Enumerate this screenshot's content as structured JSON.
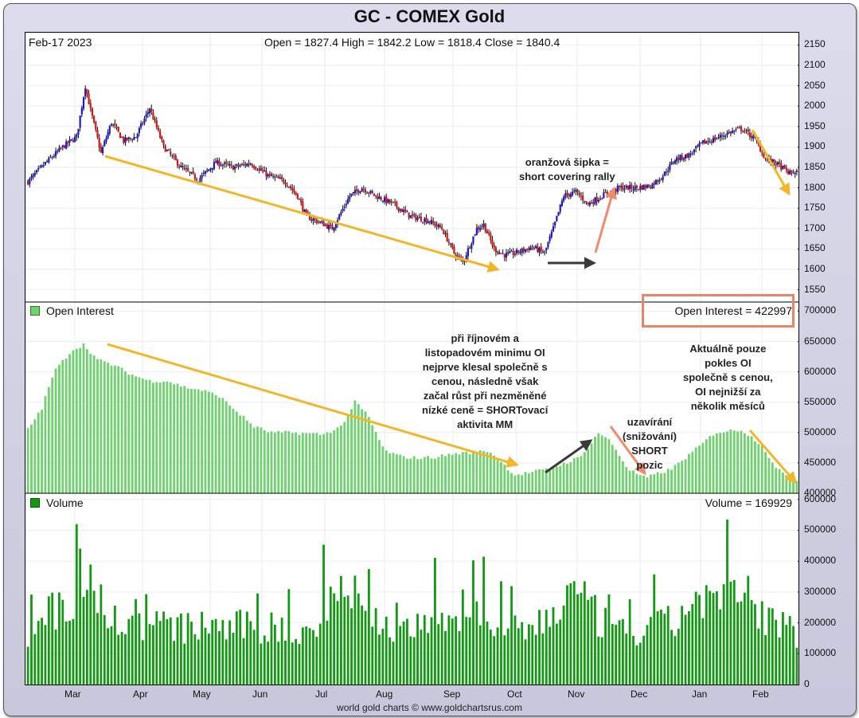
{
  "title": "GC - COMEX Gold",
  "header": {
    "date": "Feb-17  2023",
    "ohlc": "Open = 1827.4   High = 1842.2   Low = 1818.4   Close = 1840.4"
  },
  "oi_panel": {
    "label": "Open Interest",
    "value_text": "Open Interest = 422997"
  },
  "volume_panel": {
    "label": "Volume",
    "value_text": "Volume = 169929"
  },
  "footer": "world gold charts © www.goldchartsrus.com",
  "annotations": {
    "orange_arrow": [
      "oranžová šipka =",
      "short covering rally"
    ],
    "oct_nov": [
      "při říjnovém a",
      "listopadovém minimu OI",
      "nejprve klesal společně s",
      "cenou, následně však",
      "začal růst při nezměněné",
      "nízké ceně = SHORTovací",
      "aktivita MM"
    ],
    "closing": [
      "uzavírání",
      "(snižování)",
      "SHORT",
      "pozic"
    ],
    "current": [
      "Aktuálně pouze",
      "pokles OI",
      "společně s cenou,",
      "OI nejnižší za",
      "několik měsíců"
    ]
  },
  "colors": {
    "up": "#1a1acc",
    "down": "#dd1111",
    "oi": "#6fd16f",
    "volume": "#119911",
    "trend": "#f2b62a",
    "orange": "#ef8a6a",
    "dark": "#3a3a3a"
  },
  "chart_data": [
    {
      "type": "candlestick",
      "title": "GC - COMEX Gold",
      "ylim": [
        1520,
        2180
      ],
      "y_ticks": [
        1550,
        1600,
        1650,
        1700,
        1750,
        1800,
        1850,
        1900,
        1950,
        2000,
        2050,
        2100,
        2150
      ],
      "x_ticks": [
        "Mar",
        "Apr",
        "May",
        "Jun",
        "Jul",
        "Aug",
        "Sep",
        "Oct",
        "Nov",
        "Dec",
        "Jan",
        "Feb"
      ],
      "close_keypoints": [
        [
          0,
          1815
        ],
        [
          10,
          1860
        ],
        [
          20,
          1900
        ],
        [
          28,
          1925
        ],
        [
          33,
          2050
        ],
        [
          36,
          1990
        ],
        [
          42,
          1885
        ],
        [
          48,
          1960
        ],
        [
          55,
          1915
        ],
        [
          62,
          1925
        ],
        [
          70,
          1995
        ],
        [
          78,
          1900
        ],
        [
          88,
          1850
        ],
        [
          98,
          1820
        ],
        [
          108,
          1862
        ],
        [
          118,
          1850
        ],
        [
          128,
          1860
        ],
        [
          138,
          1830
        ],
        [
          148,
          1815
        ],
        [
          155,
          1780
        ],
        [
          160,
          1730
        ],
        [
          168,
          1715
        ],
        [
          175,
          1700
        ],
        [
          185,
          1780
        ],
        [
          192,
          1800
        ],
        [
          200,
          1780
        ],
        [
          210,
          1760
        ],
        [
          220,
          1730
        ],
        [
          230,
          1720
        ],
        [
          238,
          1700
        ],
        [
          245,
          1640
        ],
        [
          250,
          1618
        ],
        [
          258,
          1700
        ],
        [
          262,
          1710
        ],
        [
          268,
          1650
        ],
        [
          274,
          1635
        ],
        [
          280,
          1640
        ],
        [
          290,
          1655
        ],
        [
          297,
          1640
        ],
        [
          302,
          1700
        ],
        [
          308,
          1780
        ],
        [
          315,
          1790
        ],
        [
          322,
          1760
        ],
        [
          332,
          1785
        ],
        [
          340,
          1800
        ],
        [
          350,
          1800
        ],
        [
          358,
          1805
        ],
        [
          365,
          1830
        ],
        [
          372,
          1870
        ],
        [
          380,
          1880
        ],
        [
          388,
          1910
        ],
        [
          395,
          1920
        ],
        [
          403,
          1935
        ],
        [
          410,
          1945
        ],
        [
          418,
          1920
        ],
        [
          424,
          1870
        ],
        [
          430,
          1860
        ],
        [
          438,
          1835
        ],
        [
          442,
          1840
        ]
      ]
    },
    {
      "type": "bar",
      "title": "Open Interest",
      "ylim": [
        400000,
        715000
      ],
      "y_ticks": [
        400000,
        450000,
        500000,
        550000,
        600000,
        650000,
        700000
      ],
      "last_value": 422997,
      "keypoints": [
        [
          0,
          505000
        ],
        [
          8,
          540000
        ],
        [
          15,
          600000
        ],
        [
          25,
          635000
        ],
        [
          32,
          645000
        ],
        [
          40,
          620000
        ],
        [
          50,
          610000
        ],
        [
          60,
          595000
        ],
        [
          70,
          585000
        ],
        [
          80,
          585000
        ],
        [
          90,
          575000
        ],
        [
          100,
          570000
        ],
        [
          110,
          560000
        ],
        [
          120,
          535000
        ],
        [
          130,
          510000
        ],
        [
          140,
          500000
        ],
        [
          150,
          500000
        ],
        [
          170,
          497000
        ],
        [
          180,
          510000
        ],
        [
          188,
          550000
        ],
        [
          195,
          530000
        ],
        [
          205,
          470000
        ],
        [
          215,
          460000
        ],
        [
          225,
          458000
        ],
        [
          235,
          460000
        ],
        [
          245,
          465000
        ],
        [
          265,
          470000
        ],
        [
          280,
          430000
        ],
        [
          300,
          440000
        ],
        [
          318,
          460000
        ],
        [
          328,
          500000
        ],
        [
          335,
          485000
        ],
        [
          345,
          440000
        ],
        [
          355,
          425000
        ],
        [
          370,
          440000
        ],
        [
          383,
          470000
        ],
        [
          395,
          500000
        ],
        [
          410,
          505000
        ],
        [
          422,
          480000
        ],
        [
          430,
          440000
        ],
        [
          442,
          423000
        ]
      ]
    },
    {
      "type": "bar",
      "title": "Volume",
      "ylim": [
        0,
        620000
      ],
      "y_ticks": [
        0,
        100000,
        200000,
        300000,
        400000,
        500000,
        600000
      ],
      "last_value": 169929,
      "keypoints": [
        [
          0,
          155000
        ],
        [
          10,
          250000
        ],
        [
          20,
          230000
        ],
        [
          28,
          300000
        ],
        [
          33,
          420000
        ],
        [
          38,
          340000
        ],
        [
          45,
          220000
        ],
        [
          55,
          200000
        ],
        [
          65,
          190000
        ],
        [
          75,
          200000
        ],
        [
          85,
          180000
        ],
        [
          95,
          185000
        ],
        [
          105,
          195000
        ],
        [
          115,
          180000
        ],
        [
          125,
          190000
        ],
        [
          135,
          170000
        ],
        [
          145,
          175000
        ],
        [
          155,
          165000
        ],
        [
          165,
          185000
        ],
        [
          172,
          270000
        ],
        [
          180,
          320000
        ],
        [
          188,
          290000
        ],
        [
          195,
          230000
        ],
        [
          205,
          190000
        ],
        [
          215,
          180000
        ],
        [
          225,
          180000
        ],
        [
          235,
          200000
        ],
        [
          245,
          210000
        ],
        [
          255,
          240000
        ],
        [
          265,
          200000
        ],
        [
          275,
          170000
        ],
        [
          285,
          175000
        ],
        [
          295,
          200000
        ],
        [
          305,
          250000
        ],
        [
          313,
          300000
        ],
        [
          320,
          260000
        ],
        [
          330,
          200000
        ],
        [
          340,
          170000
        ],
        [
          350,
          160000
        ],
        [
          360,
          185000
        ],
        [
          370,
          200000
        ],
        [
          380,
          250000
        ],
        [
          390,
          290000
        ],
        [
          400,
          260000
        ],
        [
          410,
          300000
        ],
        [
          420,
          240000
        ],
        [
          430,
          200000
        ],
        [
          442,
          170000
        ]
      ]
    }
  ]
}
